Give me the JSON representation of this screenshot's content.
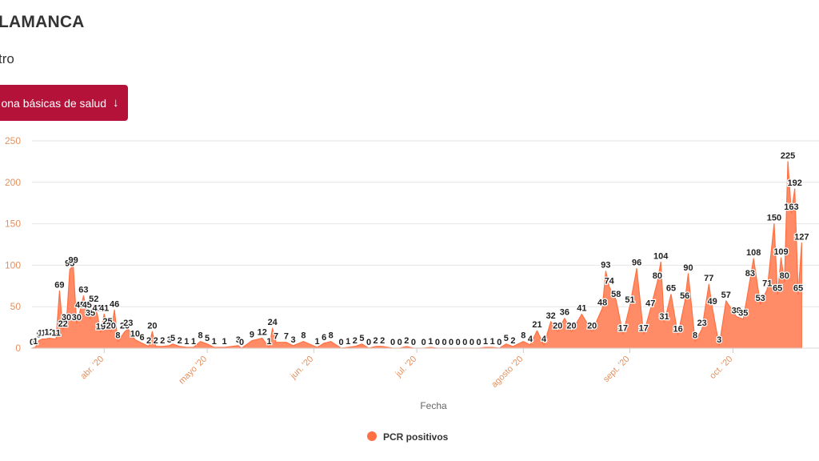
{
  "header": {
    "title": "LAMANCA",
    "subtitle": "tro",
    "zone_button_label": "ona básicas de salud",
    "zone_button_arrow": "↓"
  },
  "colors": {
    "area_fill": "#ff8c66",
    "area_stroke": "#ff7043",
    "button_bg": "#b5123a",
    "grid": "#e6e6e6",
    "axis_text": "#e4905e",
    "label_text": "#222222"
  },
  "chart_data": {
    "type": "area",
    "xlabel": "Fecha",
    "ylabel": "",
    "ylim": [
      0,
      250
    ],
    "yticks": [
      0,
      50,
      100,
      150,
      200,
      250
    ],
    "x_start": "2020-03-11",
    "x_end": "2020-10-20",
    "grid": true,
    "legend_position": "bottom-center",
    "month_ticks": [
      {
        "date": "2020-04-01",
        "label": "abr. '20"
      },
      {
        "date": "2020-05-01",
        "label": "mayo '20"
      },
      {
        "date": "2020-06-01",
        "label": "jun. '20"
      },
      {
        "date": "2020-07-01",
        "label": "jul. '20"
      },
      {
        "date": "2020-08-01",
        "label": "agosto '20"
      },
      {
        "date": "2020-09-01",
        "label": "sept. '20"
      },
      {
        "date": "2020-10-01",
        "label": "oct. '20"
      }
    ],
    "series": [
      {
        "name": "PCR positivos",
        "points": [
          [
            "2020-03-11",
            0
          ],
          [
            "2020-03-12",
            1
          ],
          [
            "2020-03-13",
            9
          ],
          [
            "2020-03-14",
            11
          ],
          [
            "2020-03-15",
            11
          ],
          [
            "2020-03-16",
            12
          ],
          [
            "2020-03-18",
            11
          ],
          [
            "2020-03-19",
            69
          ],
          [
            "2020-03-20",
            22
          ],
          [
            "2020-03-21",
            30
          ],
          [
            "2020-03-22",
            95
          ],
          [
            "2020-03-23",
            99
          ],
          [
            "2020-03-24",
            30
          ],
          [
            "2020-03-25",
            45
          ],
          [
            "2020-03-26",
            63
          ],
          [
            "2020-03-27",
            45
          ],
          [
            "2020-03-28",
            35
          ],
          [
            "2020-03-29",
            52
          ],
          [
            "2020-03-30",
            41
          ],
          [
            "2020-03-31",
            19
          ],
          [
            "2020-04-01",
            41
          ],
          [
            "2020-04-02",
            25
          ],
          [
            "2020-04-03",
            20
          ],
          [
            "2020-04-04",
            46
          ],
          [
            "2020-04-05",
            8
          ],
          [
            "2020-04-07",
            20
          ],
          [
            "2020-04-08",
            23
          ],
          [
            "2020-04-10",
            10
          ],
          [
            "2020-04-12",
            6
          ],
          [
            "2020-04-14",
            2
          ],
          [
            "2020-04-15",
            20
          ],
          [
            "2020-04-16",
            2
          ],
          [
            "2020-04-18",
            2
          ],
          [
            "2020-04-20",
            3
          ],
          [
            "2020-04-21",
            5
          ],
          [
            "2020-04-23",
            2
          ],
          [
            "2020-04-25",
            1
          ],
          [
            "2020-04-27",
            1
          ],
          [
            "2020-04-29",
            8
          ],
          [
            "2020-05-01",
            5
          ],
          [
            "2020-05-03",
            1
          ],
          [
            "2020-05-06",
            1
          ],
          [
            "2020-05-10",
            3
          ],
          [
            "2020-05-11",
            0
          ],
          [
            "2020-05-14",
            9
          ],
          [
            "2020-05-17",
            12
          ],
          [
            "2020-05-19",
            1
          ],
          [
            "2020-05-20",
            24
          ],
          [
            "2020-05-21",
            7
          ],
          [
            "2020-05-24",
            7
          ],
          [
            "2020-05-26",
            3
          ],
          [
            "2020-05-29",
            8
          ],
          [
            "2020-06-02",
            1
          ],
          [
            "2020-06-04",
            6
          ],
          [
            "2020-06-06",
            8
          ],
          [
            "2020-06-09",
            0
          ],
          [
            "2020-06-11",
            1
          ],
          [
            "2020-06-13",
            2
          ],
          [
            "2020-06-15",
            5
          ],
          [
            "2020-06-17",
            0
          ],
          [
            "2020-06-19",
            2
          ],
          [
            "2020-06-21",
            2
          ],
          [
            "2020-06-24",
            0
          ],
          [
            "2020-06-26",
            0
          ],
          [
            "2020-06-28",
            2
          ],
          [
            "2020-06-30",
            0
          ],
          [
            "2020-07-03",
            0
          ],
          [
            "2020-07-05",
            1
          ],
          [
            "2020-07-07",
            0
          ],
          [
            "2020-07-09",
            0
          ],
          [
            "2020-07-11",
            0
          ],
          [
            "2020-07-13",
            0
          ],
          [
            "2020-07-15",
            0
          ],
          [
            "2020-07-17",
            0
          ],
          [
            "2020-07-19",
            0
          ],
          [
            "2020-07-21",
            1
          ],
          [
            "2020-07-23",
            1
          ],
          [
            "2020-07-25",
            0
          ],
          [
            "2020-07-27",
            5
          ],
          [
            "2020-07-29",
            2
          ],
          [
            "2020-08-01",
            8
          ],
          [
            "2020-08-03",
            4
          ],
          [
            "2020-08-05",
            21
          ],
          [
            "2020-08-07",
            4
          ],
          [
            "2020-08-09",
            32
          ],
          [
            "2020-08-11",
            20
          ],
          [
            "2020-08-13",
            36
          ],
          [
            "2020-08-15",
            20
          ],
          [
            "2020-08-18",
            41
          ],
          [
            "2020-08-21",
            20
          ],
          [
            "2020-08-24",
            48
          ],
          [
            "2020-08-25",
            93
          ],
          [
            "2020-08-26",
            74
          ],
          [
            "2020-08-28",
            58
          ],
          [
            "2020-08-30",
            17
          ],
          [
            "2020-09-01",
            51
          ],
          [
            "2020-09-03",
            96
          ],
          [
            "2020-09-05",
            17
          ],
          [
            "2020-09-07",
            47
          ],
          [
            "2020-09-09",
            80
          ],
          [
            "2020-09-10",
            104
          ],
          [
            "2020-09-11",
            31
          ],
          [
            "2020-09-13",
            65
          ],
          [
            "2020-09-15",
            16
          ],
          [
            "2020-09-17",
            56
          ],
          [
            "2020-09-18",
            90
          ],
          [
            "2020-09-20",
            8
          ],
          [
            "2020-09-22",
            23
          ],
          [
            "2020-09-24",
            77
          ],
          [
            "2020-09-25",
            49
          ],
          [
            "2020-09-27",
            3
          ],
          [
            "2020-09-29",
            57
          ],
          [
            "2020-10-02",
            38
          ],
          [
            "2020-10-04",
            35
          ],
          [
            "2020-10-06",
            83
          ],
          [
            "2020-10-07",
            108
          ],
          [
            "2020-10-09",
            53
          ],
          [
            "2020-10-11",
            71
          ],
          [
            "2020-10-13",
            150
          ],
          [
            "2020-10-14",
            65
          ],
          [
            "2020-10-15",
            109
          ],
          [
            "2020-10-16",
            80
          ],
          [
            "2020-10-17",
            225
          ],
          [
            "2020-10-18",
            163
          ],
          [
            "2020-10-19",
            192
          ],
          [
            "2020-10-20",
            65
          ],
          [
            "2020-10-21",
            127
          ]
        ]
      }
    ]
  }
}
